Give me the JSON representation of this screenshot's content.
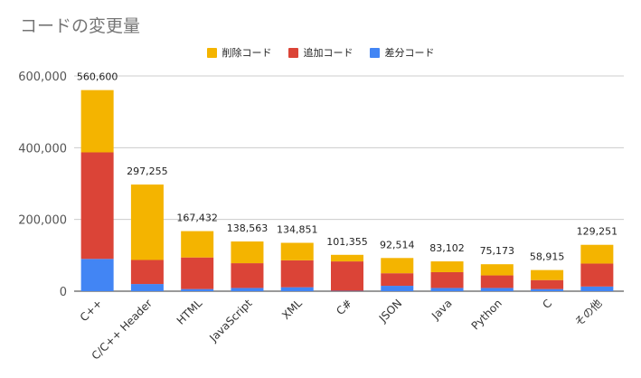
{
  "chart_data": {
    "type": "bar",
    "stacked": true,
    "title": "コードの変更量",
    "categories": [
      "C++",
      "C/C++ Header",
      "HTML",
      "JavaScript",
      "XML",
      "C#",
      "JSON",
      "Java",
      "Python",
      "C",
      "その他"
    ],
    "totals": [
      560600,
      297255,
      167432,
      138563,
      134851,
      101355,
      92514,
      83102,
      75173,
      58915,
      129251
    ],
    "total_labels": [
      "560,600",
      "297,255",
      "167,432",
      "138,563",
      "134,851",
      "101,355",
      "92,514",
      "83,102",
      "75,173",
      "58,915",
      "129,251"
    ],
    "series": [
      {
        "name": "差分コード",
        "color": "#4285f4",
        "values": [
          90000,
          20000,
          6000,
          9000,
          11000,
          1000,
          15000,
          9000,
          9000,
          6000,
          13000
        ]
      },
      {
        "name": "追加コード",
        "color": "#db4437",
        "values": [
          297000,
          67000,
          88000,
          69000,
          75000,
          82000,
          35000,
          44000,
          35000,
          25000,
          64000
        ]
      },
      {
        "name": "削除コード",
        "color": "#f4b400",
        "values": [
          173600,
          210255,
          73432,
          60563,
          48851,
          18355,
          42514,
          30102,
          31173,
          27915,
          52251
        ]
      }
    ],
    "legend_order": [
      "削除コード",
      "追加コード",
      "差分コード"
    ],
    "ylim": [
      0,
      600000
    ],
    "yticks": [
      0,
      200000,
      400000,
      600000
    ],
    "ytick_labels": [
      "0",
      "200,000",
      "400,000",
      "600,000"
    ],
    "grid": true,
    "legend_position": "top"
  }
}
